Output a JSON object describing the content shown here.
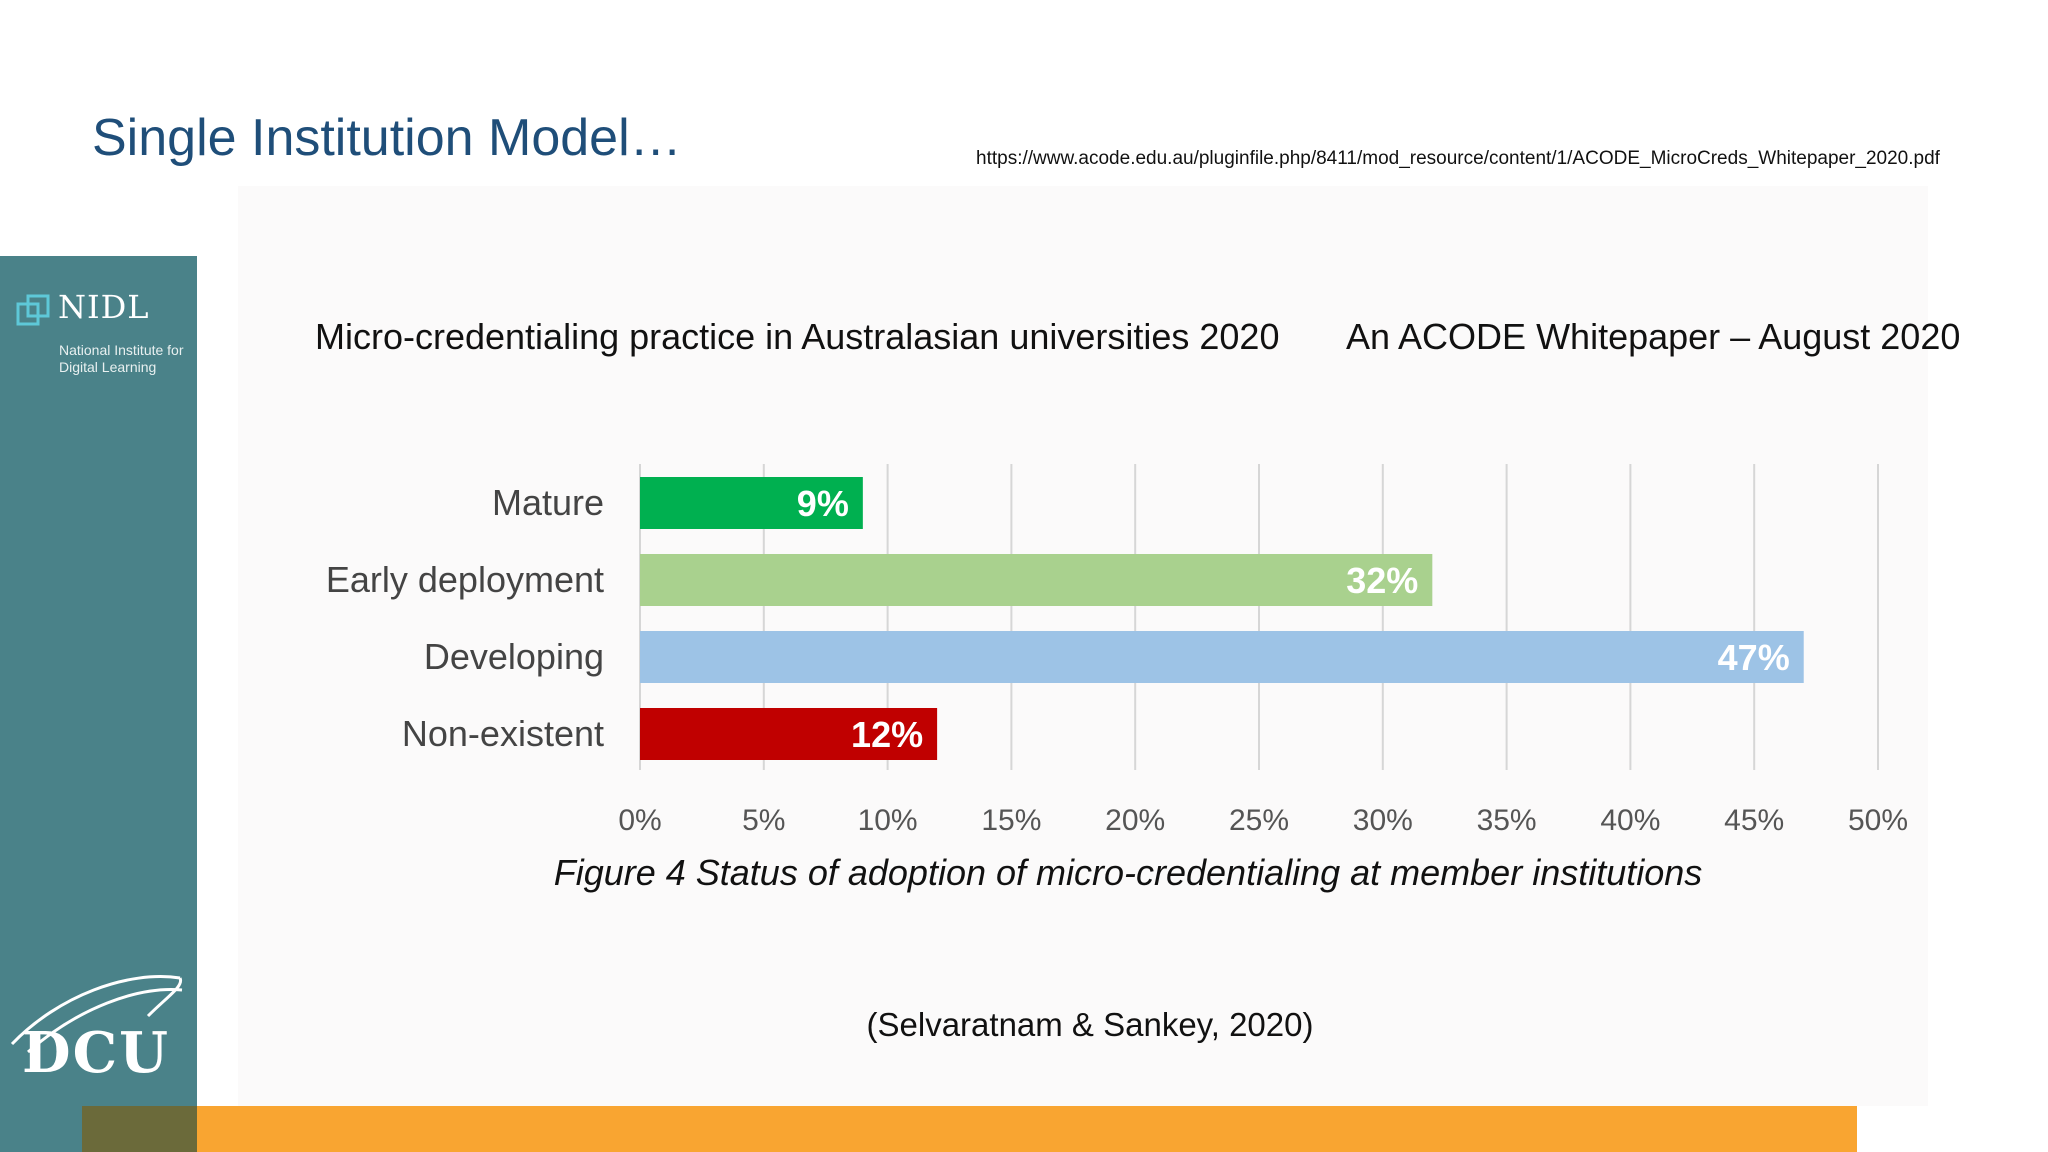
{
  "slide": {
    "title": "Single Institution Model…",
    "source_url": "https://www.acode.edu.au/pluginfile.php/8411/mod_resource/content/1/ACODE_MicroCreds_Whitepaper_2020.pdf",
    "citation": "(Selvaratnam & Sankey, 2020)"
  },
  "sidebar": {
    "nidl_name": "NIDL",
    "nidl_subtitle": "National Institute for Digital Learning",
    "dcu_name": "DCU"
  },
  "colors": {
    "title": "#1f4e79",
    "sidebar": "#4a8289",
    "bottom_bar": "#f9a531",
    "mature": "#00b050",
    "early_deployment": "#a9d18e",
    "developing": "#9dc3e6",
    "non_existent": "#c00000"
  },
  "chart_data": {
    "type": "bar",
    "orientation": "horizontal",
    "title": "Micro-credentialing practice in Australasian universities 2020",
    "subtitle": "An ACODE Whitepaper – August 2020",
    "caption": "Figure 4 Status of adoption of micro-credentialing at member institutions",
    "categories": [
      "Mature",
      "Early deployment",
      "Developing",
      "Non-existent"
    ],
    "values": [
      9,
      32,
      47,
      12
    ],
    "data_labels": [
      "9%",
      "32%",
      "47%",
      "12%"
    ],
    "bar_colors": [
      "#00b050",
      "#a9d18e",
      "#9dc3e6",
      "#c00000"
    ],
    "xlim": [
      0,
      50
    ],
    "x_ticks": [
      "0%",
      "5%",
      "10%",
      "15%",
      "20%",
      "25%",
      "30%",
      "35%",
      "40%",
      "45%",
      "50%"
    ],
    "grid": true,
    "legend": "none"
  }
}
